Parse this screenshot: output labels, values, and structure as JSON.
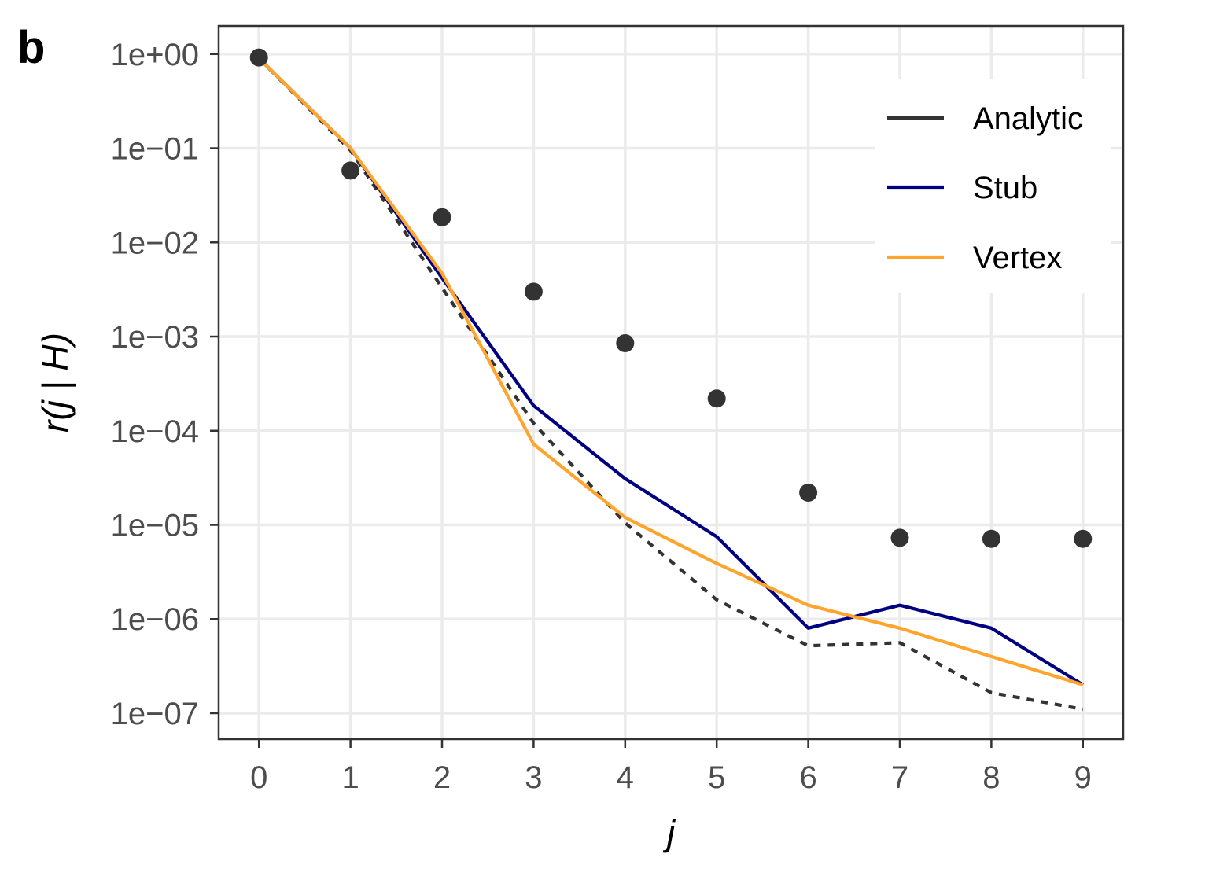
{
  "panel_label": "b",
  "colors": {
    "analytic": "#333333",
    "stub": "#000080",
    "vertex": "#FFA52E",
    "points": "#333333",
    "grid": "#ebebeb",
    "frame": "#333333"
  },
  "chart_data": {
    "type": "line",
    "xlabel": "j",
    "ylabel": "r(j | H)",
    "x": [
      0,
      1,
      2,
      3,
      4,
      5,
      6,
      7,
      8,
      9
    ],
    "x_tick_labels": [
      "0",
      "1",
      "2",
      "3",
      "4",
      "5",
      "6",
      "7",
      "8",
      "9"
    ],
    "y_scale": "log10",
    "ylim": [
      5.3e-08,
      1.99
    ],
    "xlim": [
      -0.44,
      9.44
    ],
    "y_ticks": [
      1,
      0.1,
      0.01,
      0.001,
      0.0001,
      1e-05,
      1e-06,
      1e-07
    ],
    "y_tick_labels": [
      "1e+00",
      "1e−01",
      "1e−02",
      "1e−03",
      "1e−04",
      "1e−05",
      "1e−06",
      "1e−07"
    ],
    "grid": true,
    "legend_position": "top-right",
    "series": [
      {
        "name": "Analytic",
        "style": "dashed",
        "values": [
          0.9,
          0.095,
          0.0033,
          0.00012,
          1.05e-05,
          1.6e-06,
          5.2e-07,
          5.6e-07,
          1.65e-07,
          1.1e-07
        ]
      },
      {
        "name": "Stub",
        "style": "solid",
        "values": [
          0.9,
          0.1,
          0.0042,
          0.000185,
          3.1e-05,
          7.5e-06,
          8e-07,
          1.4e-06,
          8e-07,
          2e-07
        ]
      },
      {
        "name": "Vertex",
        "style": "solid",
        "values": [
          0.9,
          0.1,
          0.0047,
          7.2e-05,
          1.2e-05,
          3.9e-06,
          1.4e-06,
          8e-07,
          4e-07,
          2e-07
        ]
      }
    ],
    "points": {
      "style": "dots",
      "values": [
        0.92,
        0.058,
        0.0185,
        0.003,
        0.00085,
        0.00022,
        2.2e-05,
        7.3e-06,
        7.1e-06,
        7.1e-06
      ]
    },
    "legend": {
      "entries": [
        "Analytic",
        "Stub",
        "Vertex"
      ]
    }
  }
}
